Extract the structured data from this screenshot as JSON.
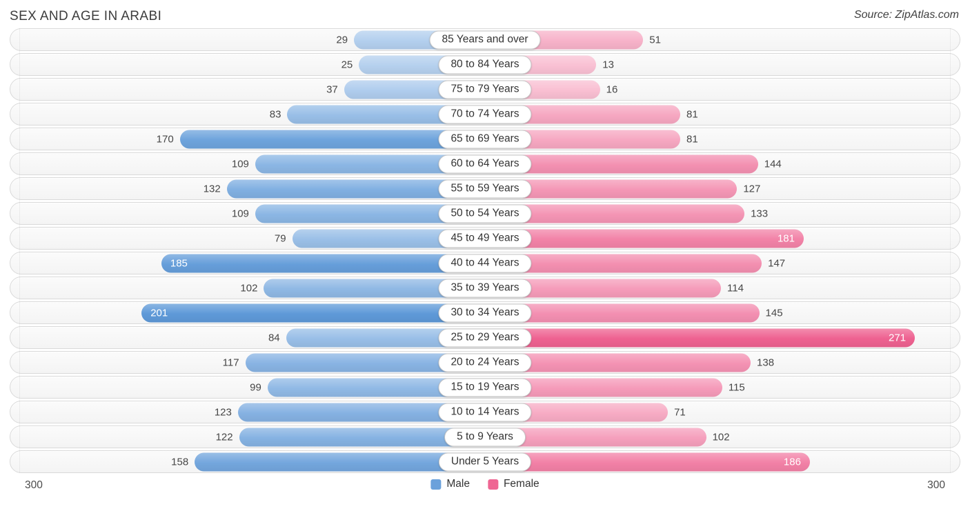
{
  "title": "SEX AND AGE IN ARABI",
  "source": "Source: ZipAtlas.com",
  "legend": {
    "male_label": "Male",
    "female_label": "Female"
  },
  "footer": {
    "left_axis_label": "300",
    "right_axis_label": "300"
  },
  "colors": {
    "male_light": "#b5d0ee",
    "male_dark": "#5e99d8",
    "female_light": "#f9c0d3",
    "female_dark": "#ee6190"
  },
  "chart_data": {
    "type": "bar",
    "subtype": "population-pyramid",
    "title": "SEX AND AGE IN ARABI",
    "legend_position": "bottom",
    "axis_max": 300,
    "inside_label_threshold": 180,
    "categories": [
      "85 Years and over",
      "80 to 84 Years",
      "75 to 79 Years",
      "70 to 74 Years",
      "65 to 69 Years",
      "60 to 64 Years",
      "55 to 59 Years",
      "50 to 54 Years",
      "45 to 49 Years",
      "40 to 44 Years",
      "35 to 39 Years",
      "30 to 34 Years",
      "25 to 29 Years",
      "20 to 24 Years",
      "15 to 19 Years",
      "10 to 14 Years",
      "5 to 9 Years",
      "Under 5 Years"
    ],
    "series": [
      {
        "name": "Male",
        "side": "left",
        "values": [
          29,
          25,
          37,
          83,
          170,
          109,
          132,
          109,
          79,
          185,
          102,
          201,
          84,
          117,
          99,
          123,
          122,
          158
        ]
      },
      {
        "name": "Female",
        "side": "right",
        "values": [
          51,
          13,
          16,
          81,
          81,
          144,
          127,
          133,
          181,
          147,
          114,
          145,
          271,
          138,
          115,
          71,
          102,
          186
        ]
      }
    ]
  }
}
